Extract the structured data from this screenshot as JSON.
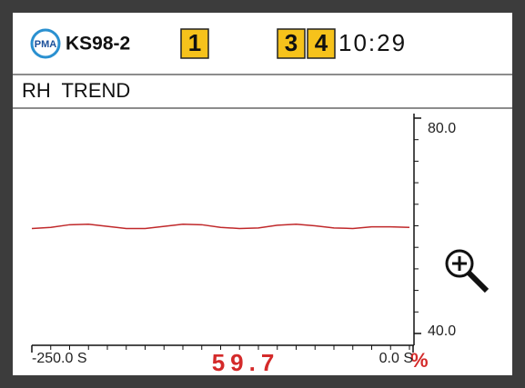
{
  "header": {
    "logo": "PMA",
    "device": "KS98-2",
    "indicators": [
      "1",
      "3",
      "4"
    ],
    "time": "10:29"
  },
  "screen_title": "RH TREND",
  "current_value": 59.7,
  "unit": "%",
  "chart_data": {
    "type": "line",
    "x": [
      -250,
      -237.5,
      -225,
      -212.5,
      -200,
      -187.5,
      -175,
      -162.5,
      -150,
      -137.5,
      -125,
      -112.5,
      -100,
      -87.5,
      -75,
      -62.5,
      -50,
      -37.5,
      -25,
      -12.5,
      0
    ],
    "series": [
      {
        "color": "#c0282a",
        "values": [
          59.5,
          59.7,
          60.2,
          60.3,
          59.9,
          59.5,
          59.5,
          59.9,
          60.3,
          60.2,
          59.7,
          59.5,
          59.6,
          60.1,
          60.3,
          60.0,
          59.6,
          59.5,
          59.8,
          59.8,
          59.7
        ]
      }
    ],
    "xlim": [
      -250,
      0
    ],
    "xticks": [
      {
        "value": -250,
        "label": "-250.0 S"
      },
      {
        "value": 0,
        "label": "0.0 S"
      }
    ],
    "ylim": [
      40,
      80
    ],
    "yticks": [
      {
        "value": 40,
        "label": "40.0"
      },
      {
        "value": 80,
        "label": "80.0"
      }
    ]
  }
}
